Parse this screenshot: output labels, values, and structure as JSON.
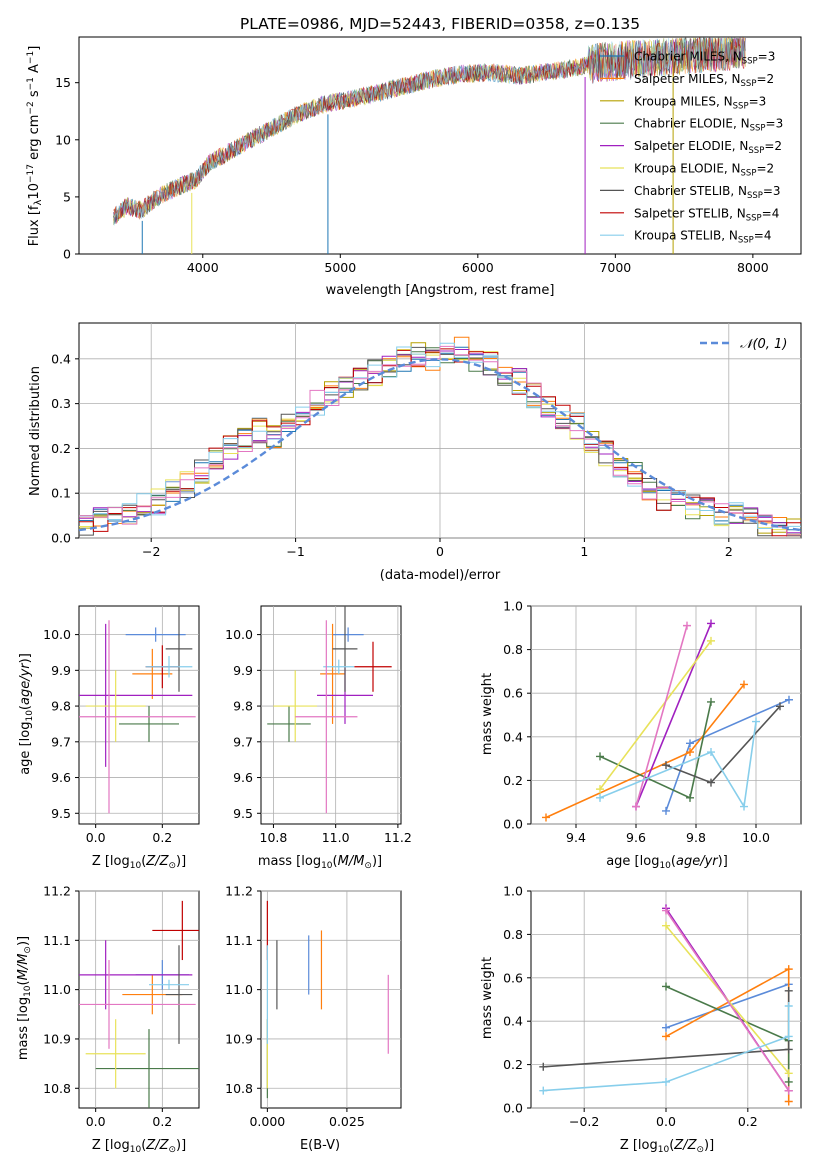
{
  "figure_title": "PLATE=0986, MJD=52443, FIBERID=0358, z=0.135",
  "colors": {
    "chabrier_miles": "#1f77b4",
    "salpeter_miles": "#ff7f0e",
    "kroupa_miles": "#b5a000",
    "chabrier_elodie": "#4a7a4a",
    "salpeter_elodie": "#a020c0",
    "kroupa_elodie": "#e8e25a",
    "chabrier_stelib": "#555555",
    "salpeter_stelib": "#c00000",
    "kroupa_stelib": "#87ceeb",
    "normal_fit": "#5b8bd9"
  },
  "chart_data": [
    {
      "id": "spectrum",
      "type": "line",
      "title": "PLATE=0986, MJD=52443, FIBERID=0358, z=0.135",
      "xlabel": "wavelength [Angstrom, rest frame]",
      "ylabel": "Flux [f_λ10^-17 erg cm^-2 s^-1 A^-1]",
      "xlim": [
        3100,
        8350
      ],
      "ylim": [
        0,
        19
      ],
      "xticks": [
        4000,
        5000,
        6000,
        7000,
        8000
      ],
      "yticks": [
        0,
        5,
        10,
        15
      ],
      "legend": "top-right",
      "series_names": [
        "Chabrier MILES, N_SSP=3",
        "Salpeter MILES, N_SSP=2",
        "Kroupa MILES, N_SSP=3",
        "Chabrier ELODIE, N_SSP=3",
        "Salpeter ELODIE, N_SSP=2",
        "Kroupa ELODIE, N_SSP=2",
        "Chabrier STELIB, N_SSP=3",
        "Salpeter STELIB, N_SSP=4",
        "Kroupa STELIB, N_SSP=4"
      ],
      "continuum_x": [
        3350,
        3450,
        3550,
        3650,
        3750,
        3850,
        3950,
        4050,
        4200,
        4350,
        4500,
        4700,
        4900,
        5100,
        5300,
        5500,
        5700,
        5900,
        6100,
        6300,
        6500,
        6700,
        6900,
        7100,
        7300,
        7500,
        7700,
        7900
      ],
      "continuum_y": [
        3.2,
        4.2,
        3.8,
        4.8,
        5.5,
        6.0,
        6.5,
        8.0,
        9.0,
        10.0,
        11.0,
        12.3,
        13.2,
        13.6,
        14.2,
        14.8,
        15.4,
        15.8,
        15.9,
        15.6,
        15.9,
        16.3,
        16.8,
        17.0,
        17.2,
        17.4,
        17.6,
        17.9
      ]
    },
    {
      "id": "residuals",
      "type": "bar",
      "xlabel": "(data-model)/error",
      "ylabel": "Normed distribution",
      "xlim": [
        -2.5,
        2.5
      ],
      "ylim": [
        0,
        0.48
      ],
      "xticks": [
        -2,
        -1,
        0,
        1,
        2
      ],
      "yticks": [
        0.0,
        0.1,
        0.2,
        0.3,
        0.4
      ],
      "grid": true,
      "legend": "top-right",
      "legend_label": "N(0,1)",
      "hist_edges_start": -2.5,
      "hist_bin_width": 0.1,
      "hist_values": [
        0.03,
        0.04,
        0.05,
        0.06,
        0.07,
        0.08,
        0.1,
        0.12,
        0.15,
        0.18,
        0.2,
        0.22,
        0.24,
        0.23,
        0.25,
        0.28,
        0.3,
        0.32,
        0.34,
        0.36,
        0.37,
        0.38,
        0.4,
        0.41,
        0.4,
        0.41,
        0.42,
        0.4,
        0.39,
        0.37,
        0.35,
        0.32,
        0.3,
        0.27,
        0.25,
        0.22,
        0.19,
        0.16,
        0.14,
        0.11,
        0.09,
        0.08,
        0.07,
        0.06,
        0.05,
        0.05,
        0.04,
        0.03,
        0.02,
        0.02
      ]
    },
    {
      "id": "age-vs-Z",
      "type": "scatter",
      "xlabel": "Z [log10(Z/Z⊙)]",
      "ylabel": "age [log10(age/yr)]",
      "xlim": [
        -0.05,
        0.31
      ],
      "ylim": [
        9.47,
        10.08
      ],
      "xticks": [
        0.0,
        0.2
      ],
      "yticks": [
        9.5,
        9.6,
        9.7,
        9.8,
        9.9,
        10.0
      ],
      "grid": true,
      "points": [
        {
          "color": "#5b8bd9",
          "x": 0.18,
          "y": 10.0,
          "xerr": 0.09,
          "yerr": 0.02
        },
        {
          "color": "#ff7f0e",
          "x": 0.17,
          "y": 9.89,
          "xerr": 0.06,
          "yerr": 0.07
        },
        {
          "color": "#4a7a4a",
          "x": 0.16,
          "y": 9.75,
          "xerr": 0.09,
          "yerr": 0.05
        },
        {
          "color": "#a020c0",
          "x": 0.03,
          "y": 9.83,
          "xerr": 0.26,
          "yerr": 0.2
        },
        {
          "color": "#e8e25a",
          "x": 0.06,
          "y": 9.8,
          "xerr": 0.09,
          "yerr": 0.1
        },
        {
          "color": "#555555",
          "x": 0.25,
          "y": 9.96,
          "xerr": 0.04,
          "yerr": 0.12
        },
        {
          "color": "#c00000",
          "x": 0.2,
          "y": 9.91,
          "xerr": 0.05,
          "yerr": 0.06
        },
        {
          "color": "#87ceeb",
          "x": 0.22,
          "y": 9.91,
          "xerr": 0.07,
          "yerr": 0.03
        },
        {
          "color": "#e377c2",
          "x": 0.04,
          "y": 9.77,
          "xerr": 0.26,
          "yerr": 0.27
        }
      ]
    },
    {
      "id": "age-vs-mass",
      "type": "scatter",
      "xlabel": "mass [log10(M/M⊙)]",
      "ylabel": "",
      "xlim": [
        10.76,
        11.21
      ],
      "ylim": [
        9.47,
        10.08
      ],
      "xticks": [
        10.8,
        11.0,
        11.2
      ],
      "yticks": [
        9.5,
        9.6,
        9.7,
        9.8,
        9.9,
        10.0
      ],
      "grid": true,
      "points": [
        {
          "color": "#5b8bd9",
          "x": 11.04,
          "y": 10.0,
          "xerr": 0.05,
          "yerr": 0.02
        },
        {
          "color": "#ff7f0e",
          "x": 10.99,
          "y": 9.89,
          "xerr": 0.04,
          "yerr": 0.14
        },
        {
          "color": "#4a7a4a",
          "x": 10.85,
          "y": 9.75,
          "xerr": 0.07,
          "yerr": 0.05
        },
        {
          "color": "#a020c0",
          "x": 11.03,
          "y": 9.83,
          "xerr": 0.09,
          "yerr": 0.08
        },
        {
          "color": "#e8e25a",
          "x": 10.87,
          "y": 9.8,
          "xerr": 0.07,
          "yerr": 0.1
        },
        {
          "color": "#555555",
          "x": 11.03,
          "y": 9.96,
          "xerr": 0.04,
          "yerr": 0.12
        },
        {
          "color": "#c00000",
          "x": 11.12,
          "y": 9.91,
          "xerr": 0.06,
          "yerr": 0.07
        },
        {
          "color": "#87ceeb",
          "x": 11.01,
          "y": 9.91,
          "xerr": 0.05,
          "yerr": 0.02
        },
        {
          "color": "#e377c2",
          "x": 10.97,
          "y": 9.77,
          "xerr": 0.1,
          "yerr": 0.27
        }
      ]
    },
    {
      "id": "mass-weight-vs-age",
      "type": "line",
      "xlabel": "age  [log10(age/yr)]",
      "ylabel": "mass weight",
      "xlim": [
        9.25,
        10.15
      ],
      "ylim": [
        0.0,
        1.0
      ],
      "xticks": [
        9.4,
        9.6,
        9.8,
        10.0
      ],
      "yticks": [
        0.0,
        0.2,
        0.4,
        0.6,
        0.8,
        1.0
      ],
      "grid": true,
      "series": [
        {
          "color": "#5b8bd9",
          "x": [
            9.7,
            9.78,
            10.11
          ],
          "y": [
            0.06,
            0.37,
            0.57
          ]
        },
        {
          "color": "#ff7f0e",
          "x": [
            9.3,
            9.78,
            9.96
          ],
          "y": [
            0.03,
            0.33,
            0.64
          ]
        },
        {
          "color": "#4a7a4a",
          "x": [
            9.48,
            9.78,
            9.85
          ],
          "y": [
            0.31,
            0.12,
            0.56
          ]
        },
        {
          "color": "#a020c0",
          "x": [
            9.6,
            9.85
          ],
          "y": [
            0.08,
            0.92
          ]
        },
        {
          "color": "#e8e25a",
          "x": [
            9.48,
            9.85
          ],
          "y": [
            0.16,
            0.84
          ]
        },
        {
          "color": "#555555",
          "x": [
            9.7,
            9.85,
            10.08
          ],
          "y": [
            0.27,
            0.19,
            0.54
          ]
        },
        {
          "color": "#e377c2",
          "x": [
            9.6,
            9.77
          ],
          "y": [
            0.08,
            0.91
          ]
        },
        {
          "color": "#87ceeb",
          "x": [
            9.48,
            9.85,
            9.96,
            10.0
          ],
          "y": [
            0.12,
            0.33,
            0.08,
            0.47
          ]
        }
      ]
    },
    {
      "id": "mass-vs-Z",
      "type": "scatter",
      "xlabel": "Z [log10(Z/Z⊙)]",
      "ylabel": "mass [log10(M/M⊙)]",
      "xlim": [
        -0.05,
        0.31
      ],
      "ylim": [
        10.76,
        11.2
      ],
      "xticks": [
        0.0,
        0.2
      ],
      "yticks": [
        10.8,
        10.9,
        11.0,
        11.1,
        11.2
      ],
      "grid": true,
      "points": [
        {
          "color": "#5b8bd9",
          "x": 0.2,
          "y": 11.03,
          "xerr": 0.08,
          "yerr": 0.03
        },
        {
          "color": "#ff7f0e",
          "x": 0.17,
          "y": 10.99,
          "xerr": 0.09,
          "yerr": 0.04
        },
        {
          "color": "#4a7a4a",
          "x": 0.16,
          "y": 10.84,
          "xerr": 0.16,
          "yerr": 0.08
        },
        {
          "color": "#a020c0",
          "x": 0.03,
          "y": 11.03,
          "xerr": 0.26,
          "yerr": 0.07
        },
        {
          "color": "#e8e25a",
          "x": 0.06,
          "y": 10.87,
          "xerr": 0.09,
          "yerr": 0.07
        },
        {
          "color": "#555555",
          "x": 0.25,
          "y": 10.99,
          "xerr": 0.04,
          "yerr": 0.1
        },
        {
          "color": "#c00000",
          "x": 0.26,
          "y": 11.12,
          "xerr": 0.09,
          "yerr": 0.06
        },
        {
          "color": "#87ceeb",
          "x": 0.22,
          "y": 11.01,
          "xerr": 0.06,
          "yerr": 0.01
        },
        {
          "color": "#e377c2",
          "x": 0.04,
          "y": 10.97,
          "xerr": 0.26,
          "yerr": 0.09
        }
      ]
    },
    {
      "id": "mass-vs-ebv",
      "type": "scatter",
      "xlabel": "E(B-V)",
      "ylabel": "",
      "xlim": [
        -0.002,
        0.042
      ],
      "ylim": [
        10.76,
        11.2
      ],
      "xticks": [
        0.0,
        0.025
      ],
      "yticks": [
        10.8,
        10.9,
        11.0,
        11.1,
        11.2
      ],
      "grid": true,
      "points": [
        {
          "color": "#5b8bd9",
          "x": 0.013,
          "y": 11.05,
          "xerr": 0,
          "yerr": 0.06
        },
        {
          "color": "#ff7f0e",
          "x": 0.017,
          "y": 11.04,
          "xerr": 0,
          "yerr": 0.08
        },
        {
          "color": "#4a7a4a",
          "x": 0.0,
          "y": 10.86,
          "xerr": 0,
          "yerr": 0.08
        },
        {
          "color": "#e8e25a",
          "x": 0.0,
          "y": 10.87,
          "xerr": 0,
          "yerr": 0.07
        },
        {
          "color": "#555555",
          "x": 0.003,
          "y": 11.03,
          "xerr": 0,
          "yerr": 0.07
        },
        {
          "color": "#c00000",
          "x": 0.0,
          "y": 11.12,
          "xerr": 0,
          "yerr": 0.06
        },
        {
          "color": "#87ceeb",
          "x": 0.0,
          "y": 10.99,
          "xerr": 0,
          "yerr": 0.1
        },
        {
          "color": "#e377c2",
          "x": 0.038,
          "y": 10.95,
          "xerr": 0,
          "yerr": 0.08
        }
      ]
    },
    {
      "id": "mass-weight-vs-Z",
      "type": "line",
      "xlabel": "Z [log10(Z/Z⊙)]",
      "ylabel": "mass weight",
      "xlim": [
        -0.33,
        0.33
      ],
      "ylim": [
        0.0,
        1.0
      ],
      "xticks": [
        -0.2,
        0.0,
        0.2
      ],
      "yticks": [
        0.0,
        0.2,
        0.4,
        0.6,
        0.8,
        1.0
      ],
      "grid": true,
      "series": [
        {
          "color": "#5b8bd9",
          "x": [
            0.0,
            0.3
          ],
          "y": [
            0.37,
            0.57
          ]
        },
        {
          "color": "#ff7f0e",
          "x": [
            0.0,
            0.3,
            0.3
          ],
          "y": [
            0.33,
            0.64,
            0.03
          ]
        },
        {
          "color": "#4a7a4a",
          "x": [
            0.0,
            0.3,
            0.3
          ],
          "y": [
            0.56,
            0.31,
            0.12
          ]
        },
        {
          "color": "#a020c0",
          "x": [
            0.0,
            0.3
          ],
          "y": [
            0.92,
            0.08
          ]
        },
        {
          "color": "#e8e25a",
          "x": [
            0.0,
            0.3
          ],
          "y": [
            0.84,
            0.16
          ]
        },
        {
          "color": "#555555",
          "x": [
            -0.3,
            0.3,
            0.3
          ],
          "y": [
            0.19,
            0.27,
            0.54
          ]
        },
        {
          "color": "#e377c2",
          "x": [
            0.0,
            0.3
          ],
          "y": [
            0.91,
            0.08
          ]
        },
        {
          "color": "#87ceeb",
          "x": [
            -0.3,
            0.0,
            0.3,
            0.3
          ],
          "y": [
            0.08,
            0.12,
            0.33,
            0.47
          ]
        }
      ]
    }
  ]
}
